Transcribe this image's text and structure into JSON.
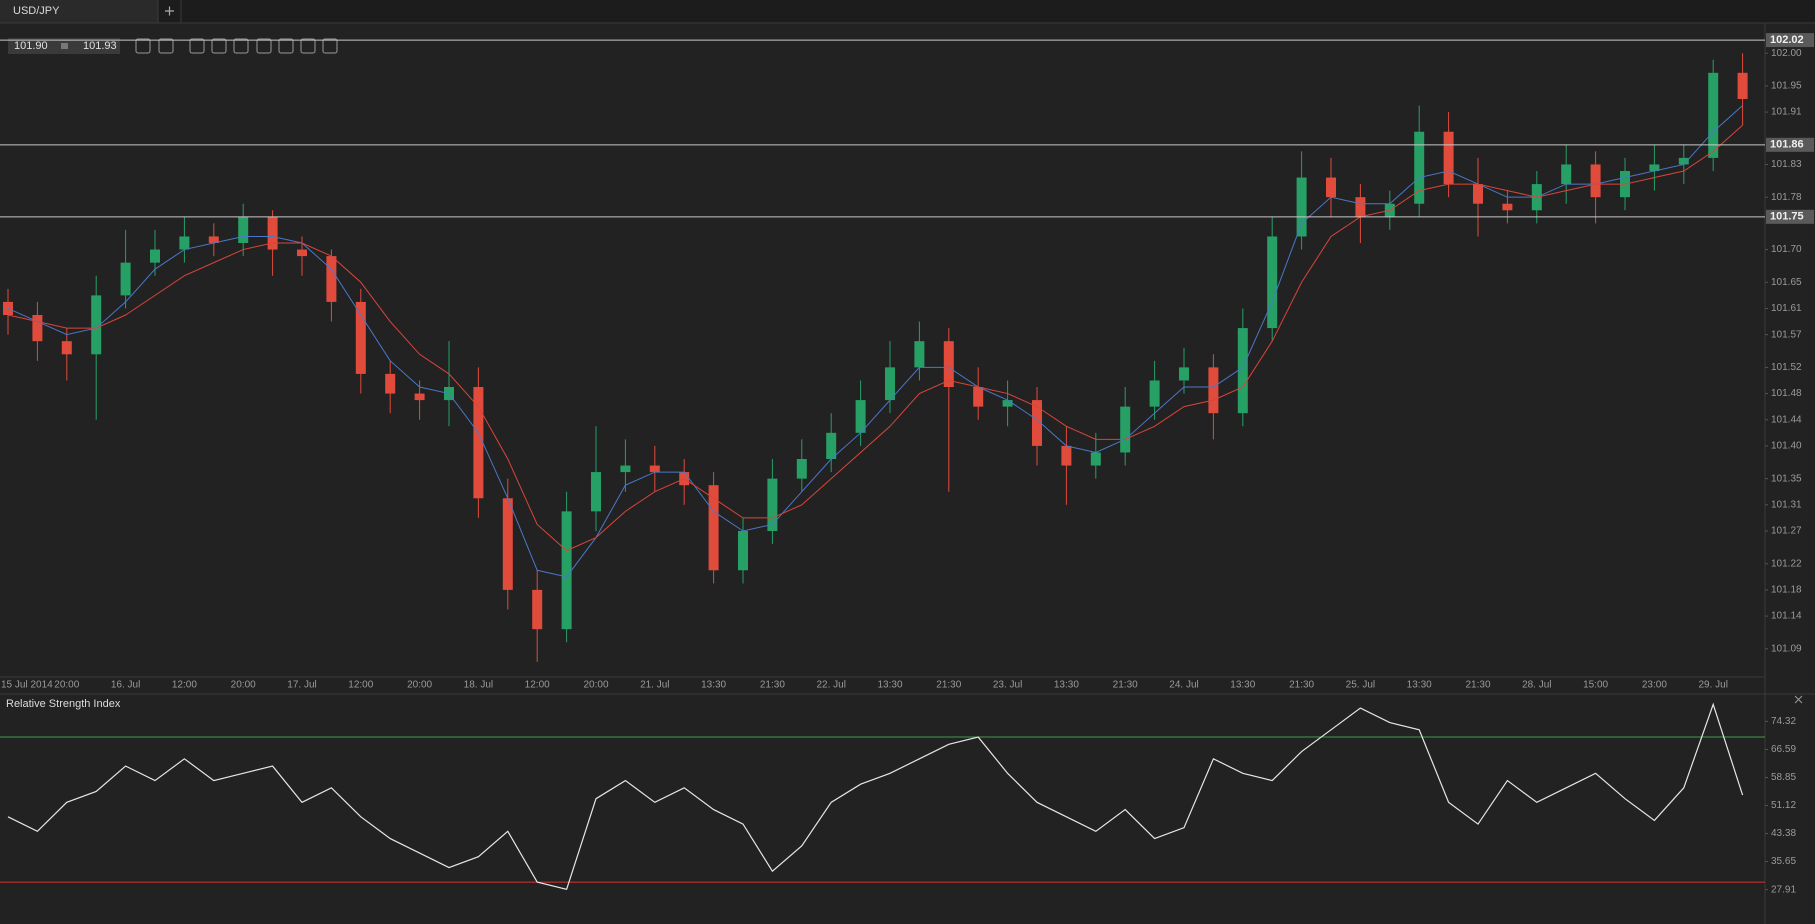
{
  "tab": {
    "title": "USD/JPY"
  },
  "toolbar": {
    "bid": "101.90",
    "ask": "101.93"
  },
  "chart_data": [
    {
      "type": "candlestick",
      "categories": [
        "15 Jul 2014",
        null,
        "20:00",
        null,
        "16. Jul",
        null,
        "12:00",
        null,
        "20:00",
        null,
        "17. Jul",
        null,
        "12:00",
        null,
        "20:00",
        null,
        "18. Jul",
        null,
        "12:00",
        null,
        "20:00",
        null,
        "21. Jul",
        null,
        "13:30",
        null,
        "21:30",
        null,
        "22. Jul",
        null,
        "13:30",
        null,
        "21:30",
        null,
        "23. Jul",
        null,
        "13:30",
        null,
        "21:30",
        null,
        "24. Jul",
        null,
        "13:30",
        null,
        "21:30",
        null,
        "25. Jul",
        null,
        "13:30",
        null,
        "21:30",
        null,
        "28. Jul",
        null,
        "15:00",
        null,
        "23:00",
        null,
        "29. Jul",
        null
      ],
      "open": [
        101.62,
        101.6,
        101.56,
        101.54,
        101.63,
        101.68,
        101.7,
        101.72,
        101.71,
        101.75,
        101.7,
        101.69,
        101.62,
        101.51,
        101.48,
        101.47,
        101.49,
        101.32,
        101.18,
        101.12,
        101.3,
        101.36,
        101.37,
        101.36,
        101.34,
        101.21,
        101.27,
        101.35,
        101.38,
        101.42,
        101.47,
        101.52,
        101.56,
        101.49,
        101.46,
        101.47,
        101.4,
        101.37,
        101.39,
        101.46,
        101.5,
        101.52,
        101.45,
        101.58,
        101.72,
        101.81,
        101.78,
        101.75,
        101.77,
        101.88,
        101.8,
        101.77,
        101.76,
        101.8,
        101.83,
        101.78,
        101.82,
        101.83,
        101.84,
        101.97
      ],
      "high": [
        101.64,
        101.62,
        101.58,
        101.66,
        101.73,
        101.73,
        101.75,
        101.74,
        101.77,
        101.76,
        101.72,
        101.7,
        101.64,
        101.53,
        101.5,
        101.56,
        101.52,
        101.35,
        101.21,
        101.33,
        101.43,
        101.41,
        101.4,
        101.38,
        101.36,
        101.29,
        101.38,
        101.41,
        101.45,
        101.5,
        101.56,
        101.59,
        101.58,
        101.52,
        101.5,
        101.49,
        101.43,
        101.42,
        101.49,
        101.53,
        101.55,
        101.54,
        101.61,
        101.75,
        101.85,
        101.84,
        101.8,
        101.79,
        101.92,
        101.91,
        101.84,
        101.79,
        101.82,
        101.86,
        101.85,
        101.84,
        101.86,
        101.86,
        101.99,
        102.0
      ],
      "low": [
        101.57,
        101.53,
        101.5,
        101.44,
        101.61,
        101.66,
        101.68,
        101.69,
        101.69,
        101.66,
        101.66,
        101.59,
        101.48,
        101.45,
        101.44,
        101.43,
        101.29,
        101.15,
        101.07,
        101.1,
        101.27,
        101.33,
        101.33,
        101.31,
        101.19,
        101.19,
        101.25,
        101.33,
        101.36,
        101.4,
        101.45,
        101.5,
        101.33,
        101.44,
        101.43,
        101.37,
        101.31,
        101.35,
        101.37,
        101.44,
        101.48,
        101.41,
        101.43,
        101.56,
        101.7,
        101.75,
        101.71,
        101.73,
        101.75,
        101.78,
        101.72,
        101.74,
        101.74,
        101.77,
        101.74,
        101.76,
        101.79,
        101.8,
        101.82,
        101.89
      ],
      "close": [
        101.6,
        101.56,
        101.54,
        101.63,
        101.68,
        101.7,
        101.72,
        101.71,
        101.75,
        101.7,
        101.69,
        101.62,
        101.51,
        101.48,
        101.47,
        101.49,
        101.32,
        101.18,
        101.12,
        101.3,
        101.36,
        101.37,
        101.36,
        101.34,
        101.21,
        101.27,
        101.35,
        101.38,
        101.42,
        101.47,
        101.52,
        101.56,
        101.49,
        101.46,
        101.47,
        101.4,
        101.37,
        101.39,
        101.46,
        101.5,
        101.52,
        101.45,
        101.58,
        101.72,
        101.81,
        101.78,
        101.75,
        101.77,
        101.88,
        101.8,
        101.77,
        101.76,
        101.8,
        101.83,
        101.78,
        101.82,
        101.83,
        101.84,
        101.97,
        101.93
      ],
      "up_color": "#27a066",
      "down_color": "#e04b3c",
      "lines": [
        {
          "color": "#4a78c8",
          "values": [
            101.61,
            101.59,
            101.57,
            101.58,
            101.62,
            101.67,
            101.7,
            101.71,
            101.72,
            101.72,
            101.71,
            101.67,
            101.6,
            101.53,
            101.49,
            101.48,
            101.42,
            101.32,
            101.21,
            101.2,
            101.26,
            101.34,
            101.36,
            101.36,
            101.3,
            101.27,
            101.28,
            101.33,
            101.38,
            101.42,
            101.47,
            101.52,
            101.52,
            101.49,
            101.47,
            101.44,
            101.4,
            101.39,
            101.41,
            101.45,
            101.49,
            101.49,
            101.52,
            101.62,
            101.74,
            101.78,
            101.77,
            101.77,
            101.81,
            101.82,
            101.8,
            101.78,
            101.78,
            101.8,
            101.8,
            101.81,
            101.82,
            101.83,
            101.88,
            101.92
          ]
        },
        {
          "color": "#d9453a",
          "values": [
            101.6,
            101.59,
            101.58,
            101.58,
            101.6,
            101.63,
            101.66,
            101.68,
            101.7,
            101.71,
            101.71,
            101.69,
            101.65,
            101.59,
            101.54,
            101.51,
            101.46,
            101.38,
            101.28,
            101.24,
            101.26,
            101.3,
            101.33,
            101.35,
            101.32,
            101.29,
            101.29,
            101.31,
            101.35,
            101.39,
            101.43,
            101.48,
            101.5,
            101.49,
            101.48,
            101.46,
            101.43,
            101.41,
            101.41,
            101.43,
            101.46,
            101.47,
            101.49,
            101.56,
            101.65,
            101.72,
            101.75,
            101.76,
            101.79,
            101.8,
            101.8,
            101.79,
            101.78,
            101.79,
            101.8,
            101.8,
            101.81,
            101.82,
            101.85,
            101.89
          ]
        }
      ],
      "ylim": [
        101.05,
        102.04
      ],
      "yticks": [
        {
          "value": 102,
          "label": "102.00"
        },
        101.95,
        101.91,
        101.83,
        101.78,
        {
          "value": 101.7,
          "label": "101.70"
        },
        101.65,
        101.61,
        101.57,
        101.52,
        101.48,
        101.44,
        {
          "value": 101.4,
          "label": "101.40"
        },
        101.35,
        101.31,
        101.27,
        101.22,
        101.18,
        101.14,
        101.09
      ],
      "levels": [
        102.02,
        101.86,
        101.75
      ],
      "level_color": "#c8c8c8"
    },
    {
      "type": "line",
      "title": "Relative Strength Index",
      "values": [
        48,
        44,
        52,
        55,
        62,
        58,
        64,
        58,
        60,
        62,
        52,
        56,
        48,
        42,
        38,
        34,
        37,
        44,
        30,
        28,
        53,
        58,
        52,
        56,
        50,
        46,
        33,
        40,
        52,
        57,
        60,
        64,
        68,
        70,
        60,
        52,
        48,
        44,
        50,
        42,
        45,
        64,
        60,
        58,
        66,
        72,
        78,
        74,
        72,
        52,
        46,
        58,
        52,
        56,
        60,
        53,
        47,
        56,
        79,
        54
      ],
      "color": "#e6e6e6",
      "ylim": [
        21.2,
        81.6
      ],
      "yticks": [
        74.32,
        66.59,
        58.85,
        51.12,
        43.38,
        35.65,
        27.91
      ],
      "levels": [
        {
          "value": 70,
          "color": "#3f9b4a"
        },
        {
          "value": 30,
          "color": "#d8342f"
        }
      ]
    }
  ]
}
